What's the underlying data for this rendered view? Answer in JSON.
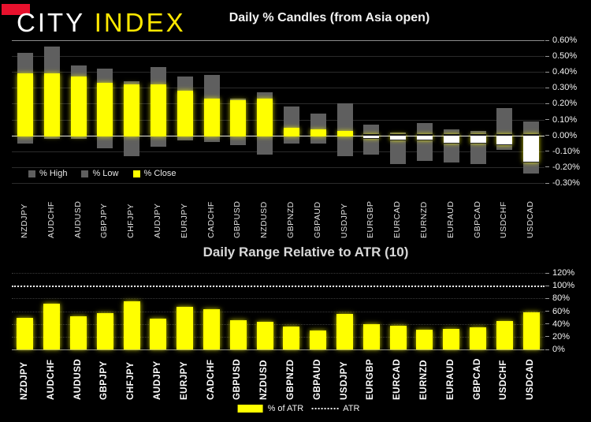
{
  "header": {
    "logo_city": "CITY ",
    "logo_index": "INDEX",
    "accent_color": "#e8112d"
  },
  "colors": {
    "background": "#000000",
    "bar_yellow": "#ffff00",
    "bar_gray": "#5f5f5f",
    "negative_close_fill": "#ffffff",
    "atr_line": "#f2f2f2"
  },
  "chart_data": [
    {
      "type": "bar",
      "title": "Daily % Candles (from Asia open)",
      "legend": [
        "% High",
        "% Low",
        "% Close"
      ],
      "legend_position": "bottom-left-inside",
      "grid": true,
      "ylim": [
        -0.3,
        0.6
      ],
      "yticks": [
        "0.60%",
        "0.50%",
        "0.40%",
        "0.30%",
        "0.20%",
        "0.10%",
        "0.00%",
        "-0.10%",
        "-0.20%",
        "-0.30%"
      ],
      "categories": [
        "NZDJPY",
        "AUDCHF",
        "AUDUSD",
        "GBPJPY",
        "CHFJPY",
        "AUDJPY",
        "EURJPY",
        "CADCHF",
        "GBPUSD",
        "NZDUSD",
        "GBPNZD",
        "GBPAUD",
        "USDJPY",
        "EURGBP",
        "EURCAD",
        "EURNZD",
        "EURAUD",
        "GBPCAD",
        "USDCHF",
        "USDCAD"
      ],
      "series": [
        {
          "name": "% High",
          "values": [
            0.52,
            0.56,
            0.44,
            0.42,
            0.34,
            0.43,
            0.37,
            0.38,
            0.23,
            0.27,
            0.18,
            0.14,
            0.2,
            0.07,
            0.02,
            0.08,
            0.04,
            0.03,
            0.17,
            0.09
          ]
        },
        {
          "name": "% Low",
          "values": [
            -0.05,
            -0.02,
            -0.02,
            -0.08,
            -0.13,
            -0.07,
            -0.03,
            -0.04,
            -0.06,
            -0.12,
            -0.05,
            -0.05,
            -0.13,
            -0.12,
            -0.18,
            -0.16,
            -0.17,
            -0.18,
            -0.09,
            -0.24
          ]
        },
        {
          "name": "% Close",
          "values": [
            0.39,
            0.39,
            0.37,
            0.33,
            0.32,
            0.32,
            0.28,
            0.23,
            0.22,
            0.23,
            0.05,
            0.04,
            0.03,
            -0.02,
            -0.03,
            -0.03,
            -0.05,
            -0.05,
            -0.06,
            -0.17
          ]
        }
      ]
    },
    {
      "type": "bar",
      "title": "Daily Range Relative to ATR (10)",
      "legend": [
        "% of ATR",
        "ATR"
      ],
      "legend_position": "bottom-center",
      "grid": true,
      "ylim": [
        0,
        120
      ],
      "yticks": [
        "120%",
        "100%",
        "80%",
        "60%",
        "40%",
        "20%",
        "0%"
      ],
      "atr_reference_pct": 100,
      "categories": [
        "NZDJPY",
        "AUDCHF",
        "AUDUSD",
        "GBPJPY",
        "CHFJPY",
        "AUDJPY",
        "EURJPY",
        "CADCHF",
        "GBPUSD",
        "NZDUSD",
        "GBPNZD",
        "GBPAUD",
        "USDJPY",
        "EURGBP",
        "EURCAD",
        "EURNZD",
        "EURAUD",
        "GBPCAD",
        "USDCHF",
        "USDCAD"
      ],
      "series": [
        {
          "name": "% of ATR",
          "values": [
            50,
            72,
            52,
            57,
            76,
            48,
            67,
            63,
            46,
            43,
            36,
            30,
            56,
            39,
            37,
            31,
            32,
            35,
            45,
            58
          ]
        }
      ]
    }
  ]
}
